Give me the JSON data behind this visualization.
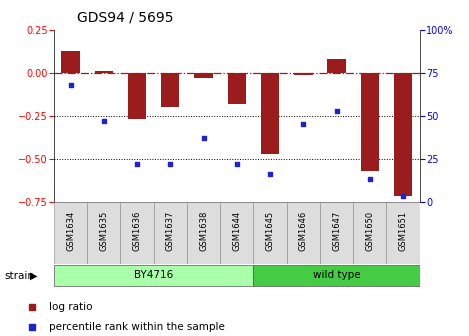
{
  "title": "GDS94 / 5695",
  "samples": [
    "GSM1634",
    "GSM1635",
    "GSM1636",
    "GSM1637",
    "GSM1638",
    "GSM1644",
    "GSM1645",
    "GSM1646",
    "GSM1647",
    "GSM1650",
    "GSM1651"
  ],
  "log_ratio": [
    0.13,
    0.01,
    -0.27,
    -0.2,
    -0.03,
    -0.18,
    -0.47,
    -0.01,
    0.08,
    -0.57,
    -0.72
  ],
  "percentile_rank": [
    68,
    47,
    22,
    22,
    37,
    22,
    16,
    45,
    53,
    13,
    3
  ],
  "ylim_left": [
    -0.75,
    0.25
  ],
  "ylim_right": [
    0,
    100
  ],
  "yticks_left": [
    -0.75,
    -0.5,
    -0.25,
    0,
    0.25
  ],
  "yticks_right": [
    0,
    25,
    50,
    75,
    100
  ],
  "hlines_dotted": [
    -0.25,
    -0.5
  ],
  "hline_dashed": 0,
  "bar_color": "#9B1C1C",
  "dot_color": "#2222CC",
  "group1_label": "BY4716",
  "group1_indices": [
    0,
    1,
    2,
    3,
    4,
    5
  ],
  "group2_label": "wild type",
  "group2_indices": [
    6,
    7,
    8,
    9,
    10
  ],
  "group1_color": "#AAFFAA",
  "group2_color": "#44CC44",
  "strain_label": "strain",
  "legend_log_ratio": "log ratio",
  "legend_percentile": "percentile rank within the sample",
  "bar_width": 0.55,
  "title_fontsize": 10,
  "tick_fontsize": 6,
  "label_fontsize": 7.5,
  "legend_fontsize": 7.5,
  "axis_tick_fontsize": 7
}
